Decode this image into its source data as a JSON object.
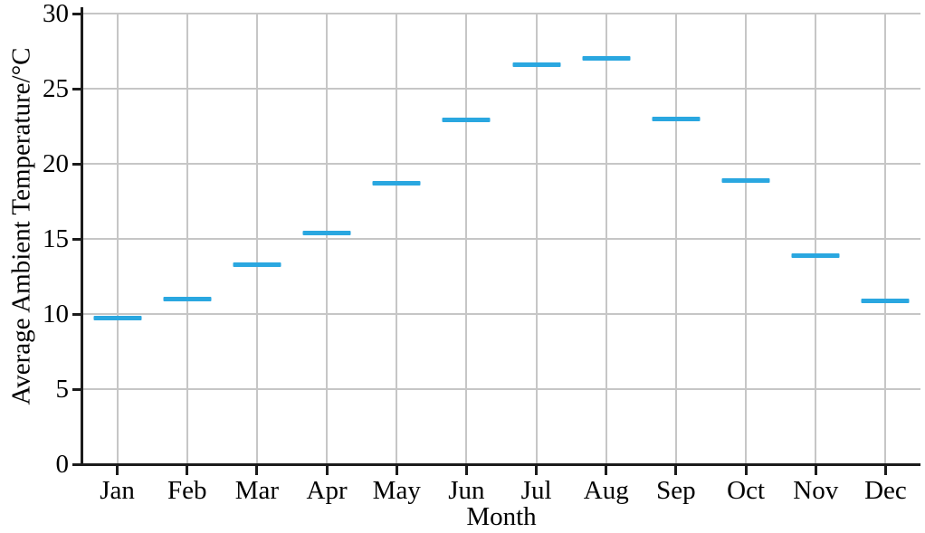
{
  "chart_data": {
    "type": "scatter",
    "marker_style": "horizontal-dash",
    "title": "",
    "xlabel": "Month",
    "ylabel": "Average Ambient Temperature/°C",
    "categories": [
      "Jan",
      "Feb",
      "Mar",
      "Apr",
      "May",
      "Jun",
      "Jul",
      "Aug",
      "Sep",
      "Oct",
      "Nov",
      "Dec"
    ],
    "series": [
      {
        "name": "Average Ambient Temperature",
        "values": [
          9.7,
          11.0,
          13.3,
          15.4,
          18.7,
          22.9,
          26.6,
          27.0,
          23.0,
          18.9,
          13.9,
          10.9
        ]
      }
    ],
    "ylim": [
      0,
      30
    ],
    "yticks": [
      0,
      5,
      10,
      15,
      20,
      25,
      30
    ],
    "grid": true,
    "legend": "none",
    "colors": {
      "marker": "#2aa7e0",
      "gridline": "#c6c6c6",
      "axis": "#1c1c1c",
      "text": "#000000"
    }
  }
}
